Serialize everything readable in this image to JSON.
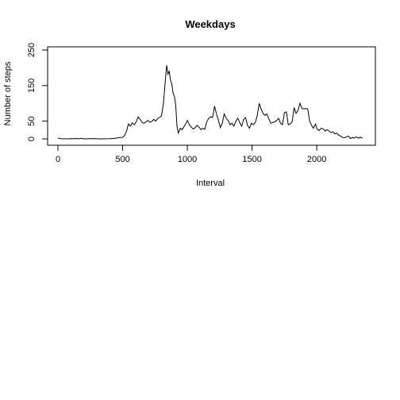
{
  "chart_data": {
    "type": "line",
    "title": "Weekdays",
    "xlabel": "Interval",
    "ylabel": "Number of steps",
    "xlim": [
      0,
      2355
    ],
    "ylim": [
      0,
      230
    ],
    "x_ticks": [
      0,
      500,
      1000,
      1500,
      2000
    ],
    "y_ticks": [
      0,
      50,
      150,
      250
    ],
    "grid": false,
    "legend": "none",
    "line_color": "#000000",
    "series": [
      {
        "x": [
          0,
          20,
          40,
          60,
          80,
          100,
          120,
          140,
          160,
          180,
          200,
          240,
          280,
          320,
          360,
          400,
          440,
          470,
          500,
          515,
          530,
          545,
          560,
          575,
          590,
          605,
          620,
          635,
          650,
          665,
          680,
          695,
          710,
          725,
          740,
          755,
          770,
          785,
          800,
          815,
          830,
          835,
          840,
          850,
          860,
          870,
          880,
          890,
          900,
          910,
          920,
          930,
          945,
          960,
          975,
          990,
          1000,
          1015,
          1030,
          1045,
          1060,
          1075,
          1090,
          1105,
          1120,
          1135,
          1150,
          1165,
          1180,
          1195,
          1210,
          1225,
          1240,
          1255,
          1270,
          1285,
          1300,
          1315,
          1330,
          1345,
          1360,
          1375,
          1390,
          1405,
          1420,
          1435,
          1450,
          1465,
          1480,
          1495,
          1510,
          1525,
          1540,
          1555,
          1570,
          1585,
          1600,
          1615,
          1630,
          1645,
          1660,
          1675,
          1690,
          1705,
          1720,
          1735,
          1750,
          1765,
          1780,
          1795,
          1810,
          1825,
          1840,
          1855,
          1870,
          1885,
          1900,
          1915,
          1930,
          1945,
          1960,
          1975,
          1990,
          2005,
          2020,
          2035,
          2050,
          2065,
          2080,
          2095,
          2110,
          2125,
          2140,
          2155,
          2170,
          2185,
          2200,
          2215,
          2230,
          2245,
          2260,
          2275,
          2290,
          2305,
          2320,
          2335,
          2355
        ],
        "y": [
          2.5,
          0.5,
          0.2,
          0.3,
          0.1,
          0.8,
          0.4,
          1.2,
          0.3,
          1.6,
          0,
          0.5,
          0.9,
          0,
          0.2,
          0.6,
          1.5,
          3.6,
          4.1,
          9,
          22,
          42,
          36,
          45,
          40,
          48,
          62,
          55,
          46,
          44,
          48,
          52,
          47,
          49,
          55,
          50,
          57,
          60,
          65,
          98,
          165,
          185,
          207,
          182,
          190,
          165,
          155,
          128,
          120,
          95,
          36,
          16,
          30,
          26,
          35,
          44,
          52,
          40,
          33,
          28,
          31,
          38,
          33,
          26,
          30,
          27,
          48,
          58,
          62,
          60,
          92,
          70,
          52,
          32,
          44,
          70,
          58,
          52,
          40,
          44,
          36,
          50,
          58,
          46,
          36,
          55,
          60,
          38,
          30,
          44,
          40,
          46,
          65,
          100,
          84,
          72,
          66,
          70,
          56,
          44,
          46,
          48,
          52,
          58,
          44,
          40,
          74,
          76,
          40,
          42,
          48,
          88,
          72,
          80,
          100,
          86,
          84,
          86,
          84,
          50,
          38,
          30,
          42,
          26,
          24,
          30,
          28,
          22,
          26,
          22,
          18,
          20,
          14,
          16,
          10,
          8,
          4,
          3,
          6,
          8,
          1,
          4,
          2,
          6,
          2,
          5,
          2
        ]
      }
    ]
  }
}
